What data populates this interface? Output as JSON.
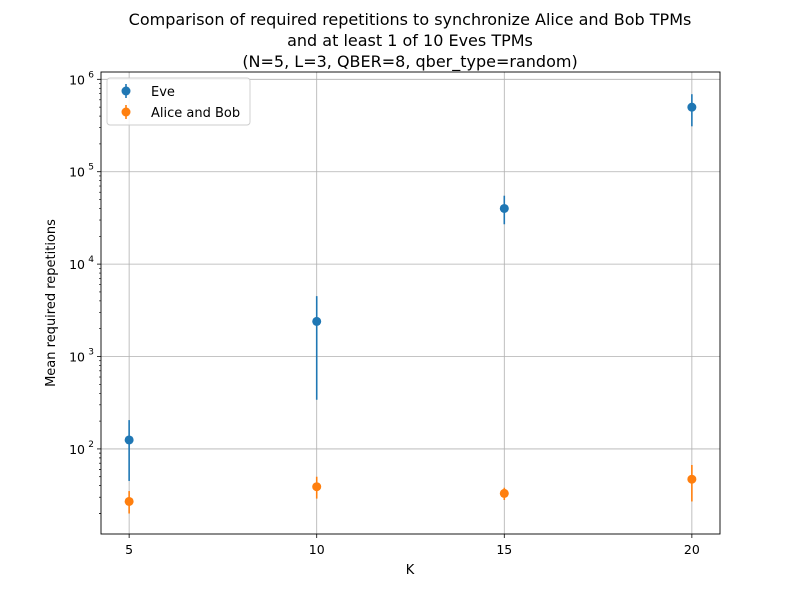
{
  "chart_data": {
    "type": "scatter",
    "title": [
      "Comparison of required repetitions to synchronize Alice and Bob TPMs",
      "and at least 1 of 10 Eves TPMs",
      "(N=5, L=3, QBER=8, qber_type=random)"
    ],
    "xlabel": "K",
    "ylabel": "Mean required repetitions",
    "x": [
      5,
      10,
      15,
      20
    ],
    "x_ticks": [
      "5",
      "10",
      "15",
      "20"
    ],
    "y_scale": "log",
    "ylim": [
      12,
      1200000
    ],
    "y_ticks": [
      {
        "value": 100,
        "base": "10",
        "exp": "2"
      },
      {
        "value": 1000,
        "base": "10",
        "exp": "3"
      },
      {
        "value": 10000,
        "base": "10",
        "exp": "4"
      },
      {
        "value": 100000,
        "base": "10",
        "exp": "5"
      },
      {
        "value": 1000000,
        "base": "10",
        "exp": "6"
      }
    ],
    "grid": true,
    "legend_position": "top-left",
    "series": [
      {
        "name": "Eve",
        "color": "#1f77b4",
        "values": [
          125,
          2400,
          40000,
          500000
        ],
        "err_low": [
          45,
          340,
          27000,
          310000
        ],
        "err_high": [
          205,
          4500,
          55000,
          690000
        ]
      },
      {
        "name": "Alice and Bob",
        "color": "#ff7f0e",
        "values": [
          27,
          39,
          33,
          47
        ],
        "err_low": [
          20,
          29,
          28,
          27
        ],
        "err_high": [
          35,
          50,
          38,
          67
        ]
      }
    ]
  }
}
